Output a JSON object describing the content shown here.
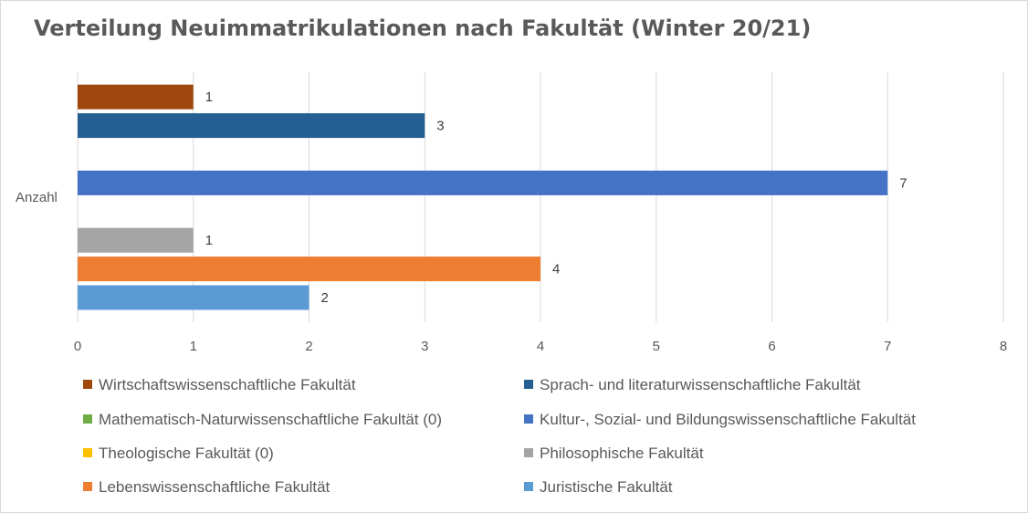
{
  "chart_data": {
    "type": "bar",
    "orientation": "horizontal",
    "title": "Verteilung Neuimmatrikulationen nach Fakultät (Winter 20/21)",
    "categories": [
      "Anzahl"
    ],
    "xlim": [
      0,
      8
    ],
    "x_ticks": [
      "0",
      "1",
      "2",
      "3",
      "4",
      "5",
      "6",
      "7",
      "8"
    ],
    "grid": true,
    "legend_position": "bottom",
    "series": [
      {
        "name": "Juristische Fakultät",
        "value": 2,
        "color": "#5b9bd5"
      },
      {
        "name": "Lebenswissenschaftliche Fakultät",
        "value": 4,
        "color": "#ed7d31"
      },
      {
        "name": "Philosophische Fakultät",
        "value": 1,
        "color": "#a5a5a5"
      },
      {
        "name": "Theologische Fakultät (0)",
        "value": 0,
        "color": "#ffc000"
      },
      {
        "name": "Kultur-, Sozial- und Bildungswissenschaftliche Fakultät",
        "value": 7,
        "color": "#4472c4"
      },
      {
        "name": "Mathematisch-Naturwissenschaftliche Fakultät (0)",
        "value": 0,
        "color": "#70ad47"
      },
      {
        "name": "Sprach- und literaturwissenschaftliche Fakultät",
        "value": 3,
        "color": "#255e91"
      },
      {
        "name": "Wirtschaftswissenschaftliche Fakultät",
        "value": 1,
        "color": "#9e480e"
      }
    ],
    "legend_order": [
      7,
      6,
      5,
      4,
      3,
      2,
      1,
      0
    ]
  }
}
